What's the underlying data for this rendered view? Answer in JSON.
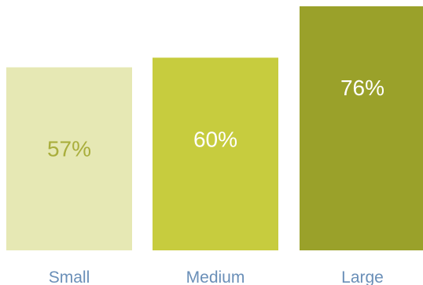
{
  "chart_data": {
    "type": "bar",
    "categories": [
      "Small",
      "Medium",
      "Large"
    ],
    "values": [
      57,
      60,
      76
    ],
    "value_labels": [
      "57%",
      "60%",
      "76%"
    ],
    "colors": [
      "#e6e8b4",
      "#c7cc3e",
      "#9aa12a"
    ],
    "value_label_colors": [
      "#a9ae3c",
      "#ffffff",
      "#ffffff"
    ],
    "ylim": [
      0,
      80
    ],
    "grid": false,
    "legend": "none",
    "title": "",
    "xlabel": "",
    "ylabel": ""
  }
}
